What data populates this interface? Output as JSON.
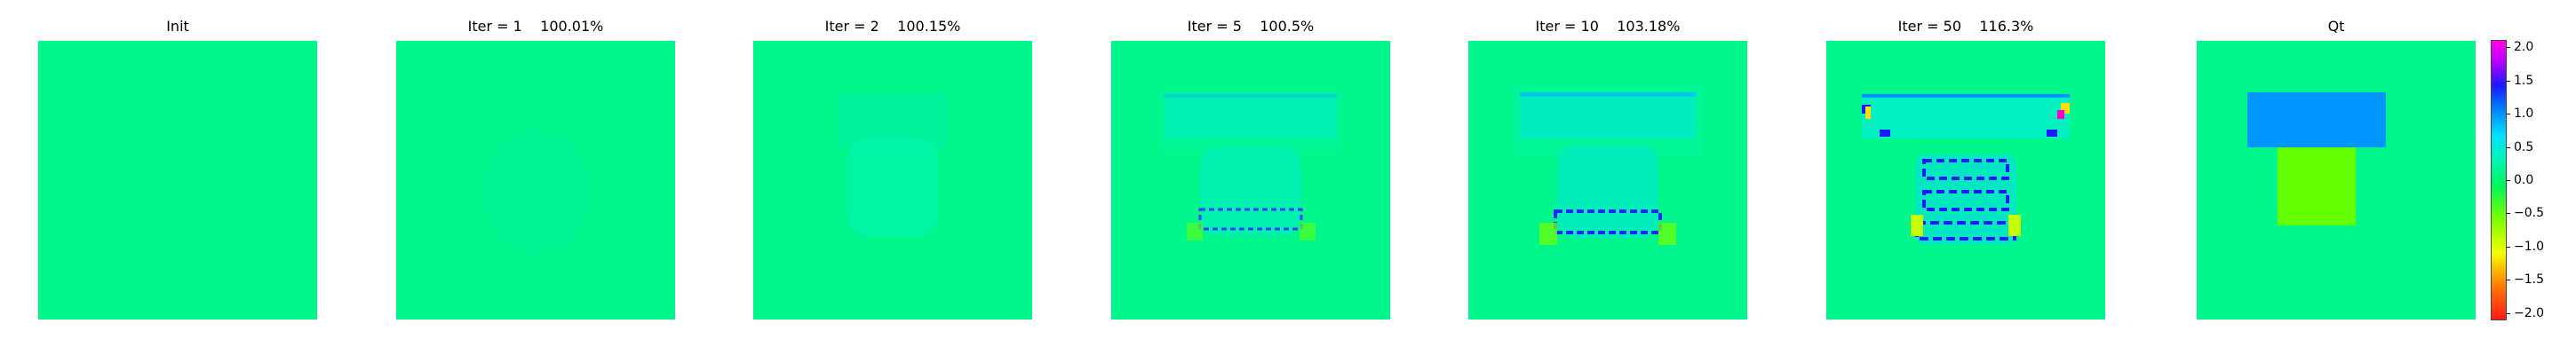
{
  "chart_data": {
    "type": "heatmap",
    "panels": [
      {
        "title": "Init"
      },
      {
        "title": "Iter = 1    100.01%"
      },
      {
        "title": "Iter = 2    100.15%"
      },
      {
        "title": "Iter = 5    100.5%"
      },
      {
        "title": "Iter = 10    103.18%"
      },
      {
        "title": "Iter = 50    116.3%"
      },
      {
        "title": "Qt"
      }
    ],
    "colorbar": {
      "ticks": [
        2.0,
        1.5,
        1.0,
        0.5,
        0.0,
        -0.5,
        -1.0,
        -1.5,
        -2.0
      ],
      "tick_labels": [
        "2.0",
        "1.5",
        "1.0",
        "0.5",
        "0.0",
        "−0.5",
        "−1.0",
        "−1.5",
        "−2.0"
      ],
      "range": [
        -2.1,
        2.1
      ],
      "colormap": "gist_rainbow"
    },
    "colors": {
      "background_field": "#00f58a",
      "qt_upper_block": "#0096ff",
      "qt_lower_block": "#66ff00"
    }
  }
}
